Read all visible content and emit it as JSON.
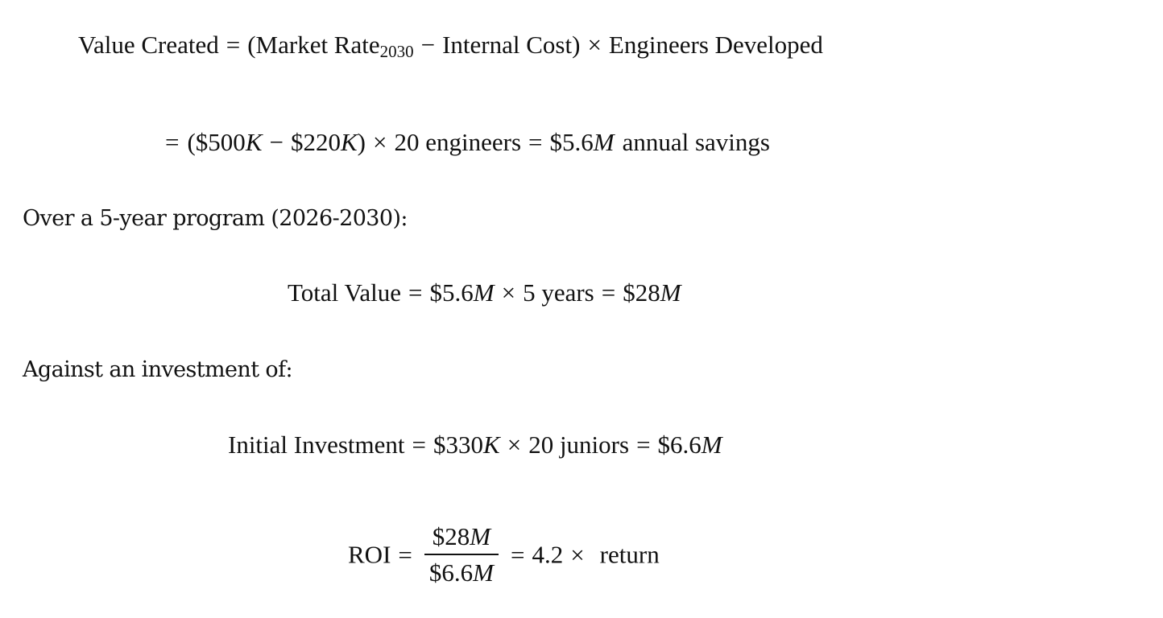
{
  "eq1": {
    "lhs": "Value Created",
    "eq": "=",
    "open": "(Market Rate",
    "sub": "2030",
    "minus": "−",
    "internal": "Internal Cost)",
    "times": "×",
    "rhs": "Engineers Developed"
  },
  "eq2": {
    "eq": "=",
    "open": "($500",
    "k1": "K",
    "minus": "−",
    "val2": "$220",
    "k2": "K",
    "close": ")",
    "times": "×",
    "count": "20 engineers",
    "eq2": "=",
    "result_num": "$5.6",
    "result_var": "M",
    "suffix": "annual savings"
  },
  "prose1": "Over a 5-year program (2026-2030):",
  "eq3": {
    "lhs": "Total Value",
    "eq": "=",
    "num": "$5.6",
    "var": "M",
    "times": "×",
    "years": "5 years",
    "eq2": "=",
    "res_num": "$28",
    "res_var": "M"
  },
  "prose2": "Against an investment of:",
  "eq4": {
    "lhs": "Initial Investment",
    "eq": "=",
    "num": "$330",
    "var": "K",
    "times": "×",
    "count": "20 juniors",
    "eq2": "=",
    "res_num": "$6.6",
    "res_var": "M"
  },
  "eq5": {
    "lhs": "ROI",
    "eq": "=",
    "numerator_num": "$28",
    "numerator_var": "M",
    "denominator_num": "$6.6",
    "denominator_var": "M",
    "eq2": "=",
    "value": "4.2",
    "times": "×",
    "suffix": "return"
  }
}
